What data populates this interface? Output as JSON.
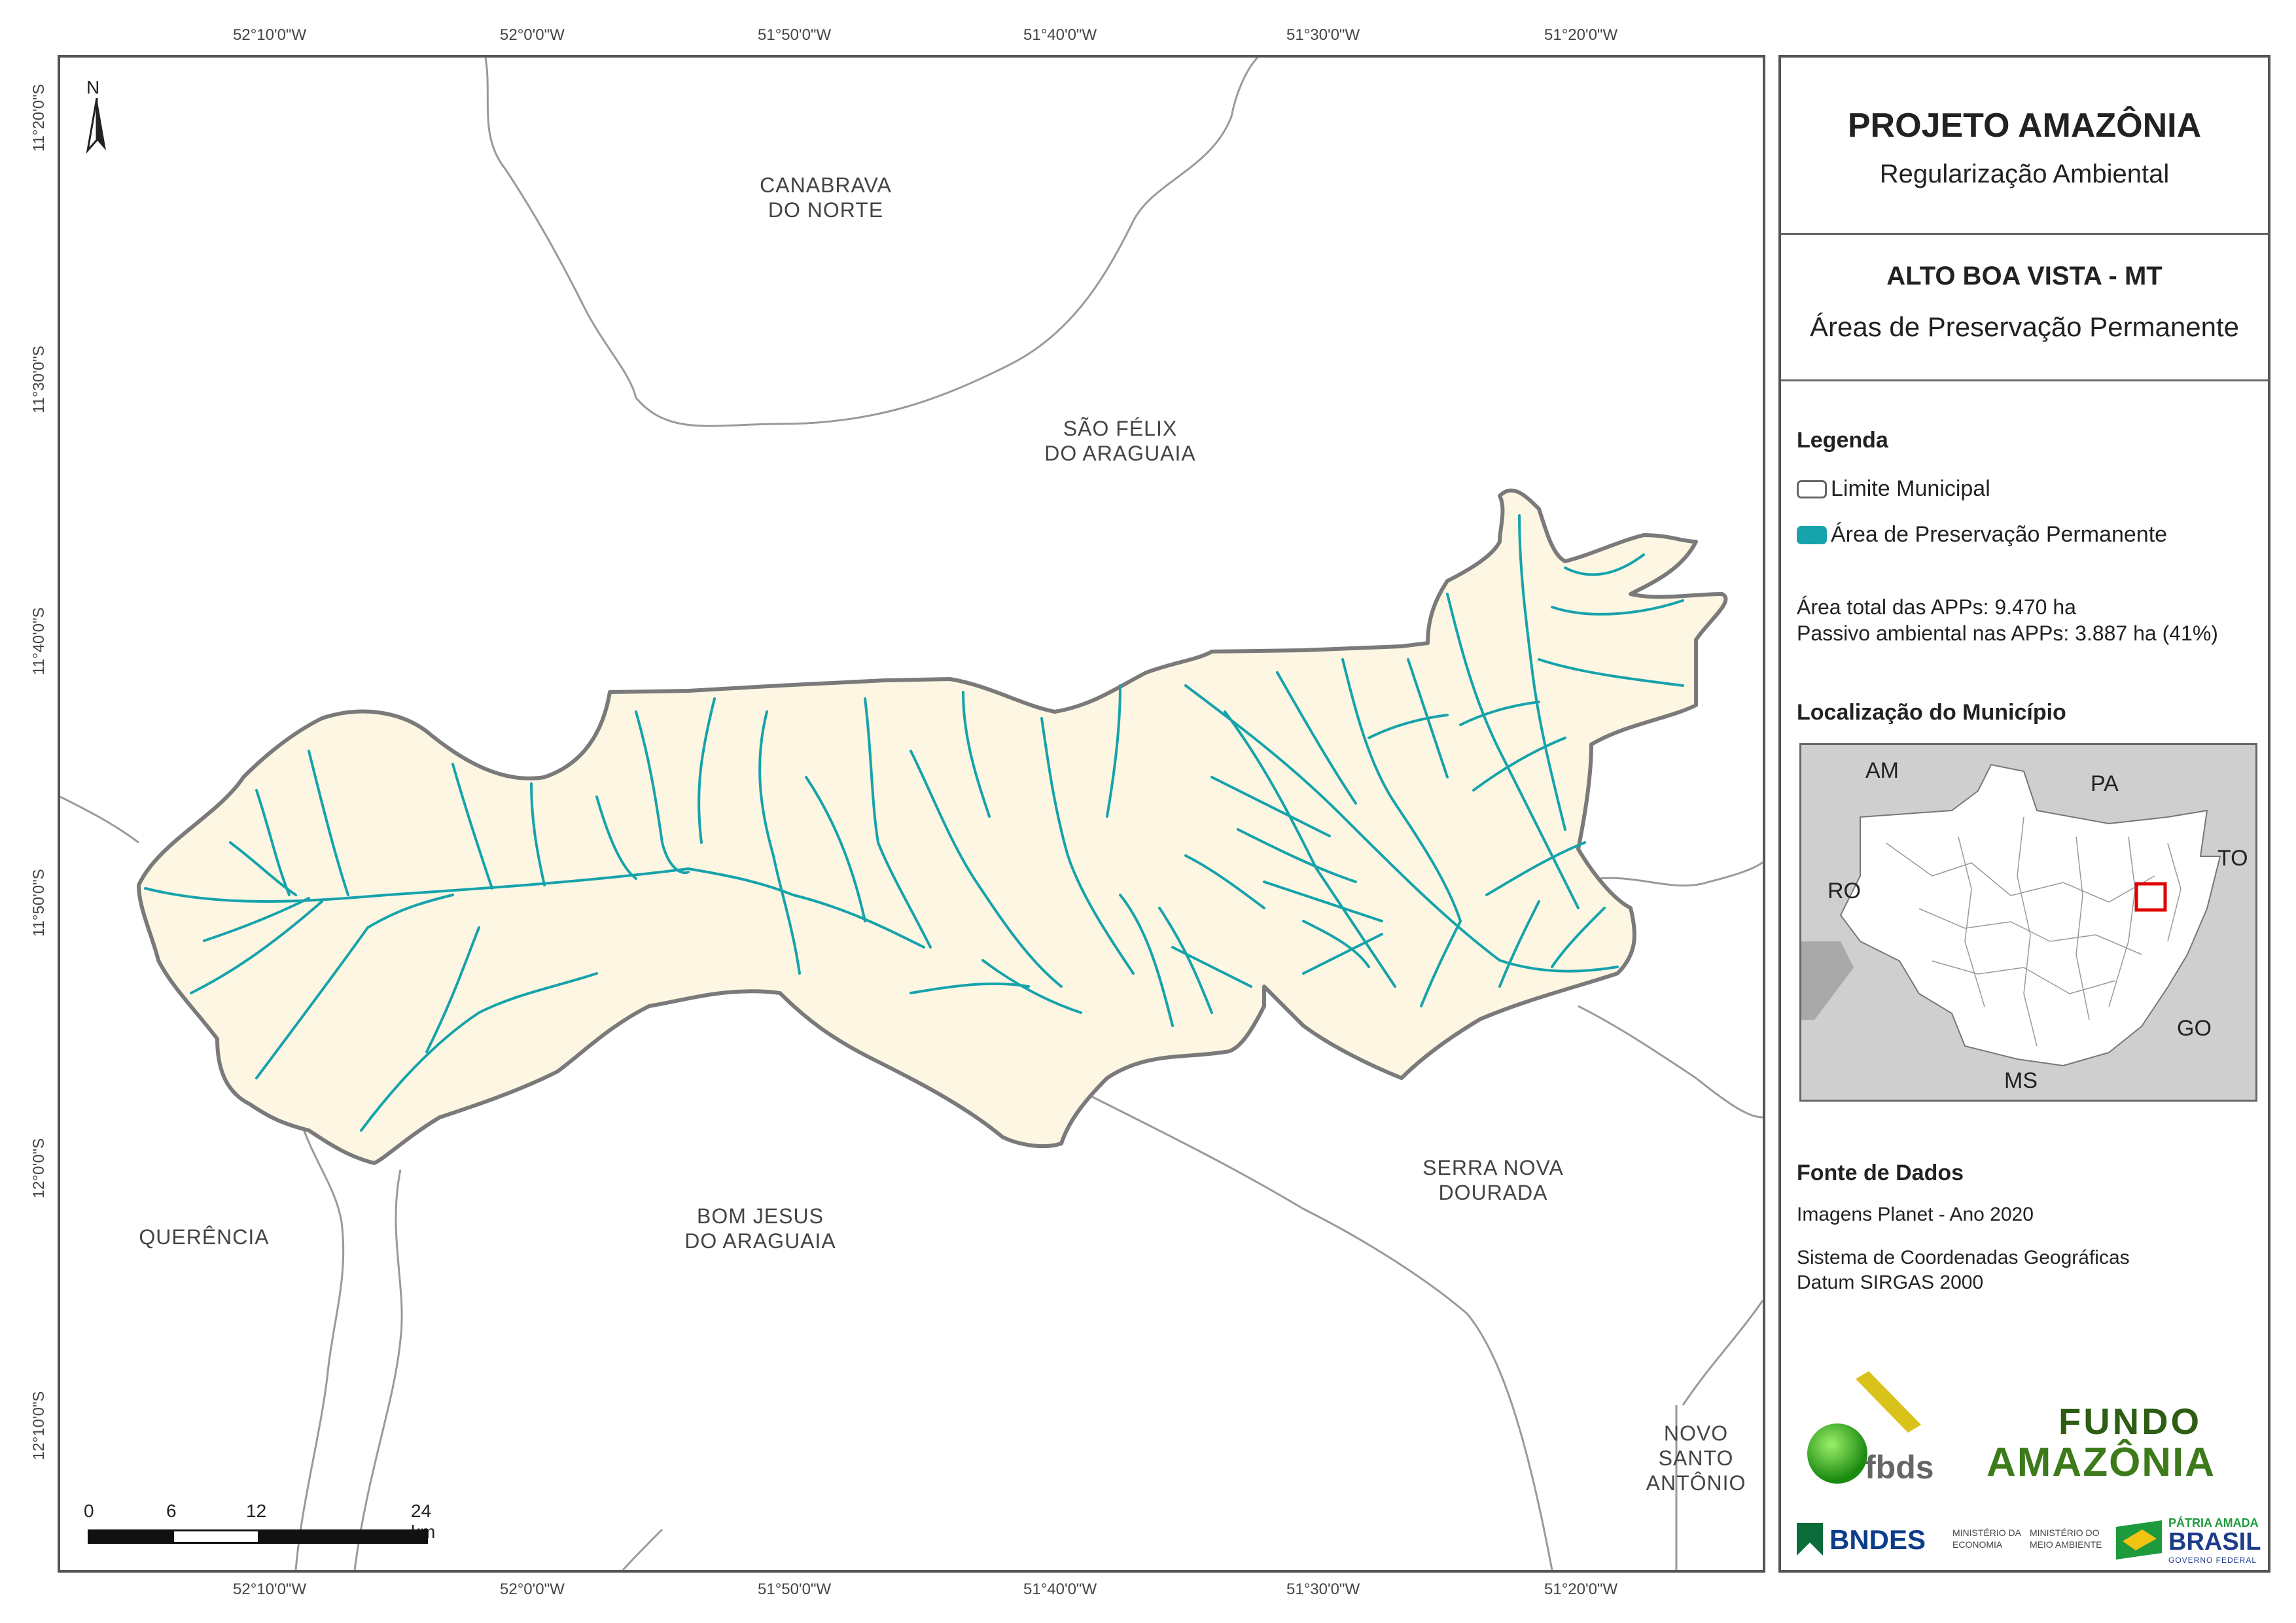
{
  "map": {
    "top_coords": [
      "52°10'0\"W",
      "52°0'0\"W",
      "51°50'0\"W",
      "51°40'0\"W",
      "51°30'0\"W",
      "51°20'0\"W"
    ],
    "left_coords": [
      "11°20'0\"S",
      "11°30'0\"S",
      "11°40'0\"S",
      "11°50'0\"S",
      "12°0'0\"S",
      "12°10'0\"S"
    ],
    "north_label": "N",
    "municipalities": {
      "canabrava": "CANABRAVA\nDO NORTE",
      "sao_felix": "SÃO FÉLIX\nDO ARAGUAIA",
      "serra_nova": "SERRA NOVA\nDOURADA",
      "bom_jesus": "BOM JESUS\nDO ARAGUAIA",
      "querencia": "QUERÊNCIA",
      "novo_santo": "NOVO\nSANTO\nANTÔNIO"
    },
    "scale": {
      "ticks": [
        "0",
        "6",
        "12",
        "24 km"
      ]
    },
    "colors": {
      "land": "#fdf6e3",
      "app": "#16a3ab",
      "boundary": "#7a7a7a",
      "neighbors": "#9a9a9a"
    }
  },
  "panel": {
    "title": "PROJETO AMAZÔNIA",
    "subtitle": "Regularização Ambiental",
    "municipality": "ALTO BOA VISTA - MT",
    "theme": "Áreas de Preservação Permanente",
    "legend_title": "Legenda",
    "legend_items": [
      {
        "label": "Limite Municipal",
        "color": "#ffffff"
      },
      {
        "label": "Área de Preservação Permanente",
        "color": "#16a3ab"
      }
    ],
    "stats": [
      "Área total das APPs: 9.470 ha",
      "Passivo ambiental nas APPs: 3.887 ha (41%)"
    ],
    "location_title": "Localização do Município",
    "inset_labels": {
      "am": "AM",
      "pa": "PA",
      "to": "TO",
      "ro": "RO",
      "go": "GO",
      "ms": "MS"
    },
    "source_title": "Fonte de Dados",
    "source_lines": [
      "Imagens Planet - Ano 2020",
      "Sistema de Coordenadas Geográficas",
      "Datum SIRGAS 2000"
    ],
    "logos": {
      "fbds": "fbds",
      "fundo_1": "FUNDO",
      "fundo_2": "AMAZÔNIA",
      "bndes": "BNDES",
      "min_eco": "MINISTÉRIO DA\nECONOMIA",
      "min_mma": "MINISTÉRIO DO\nMEIO AMBIENTE",
      "brasil_1": "PÁTRIA AMADA",
      "brasil_2": "BRASIL",
      "brasil_3": "GOVERNO FEDERAL"
    }
  }
}
